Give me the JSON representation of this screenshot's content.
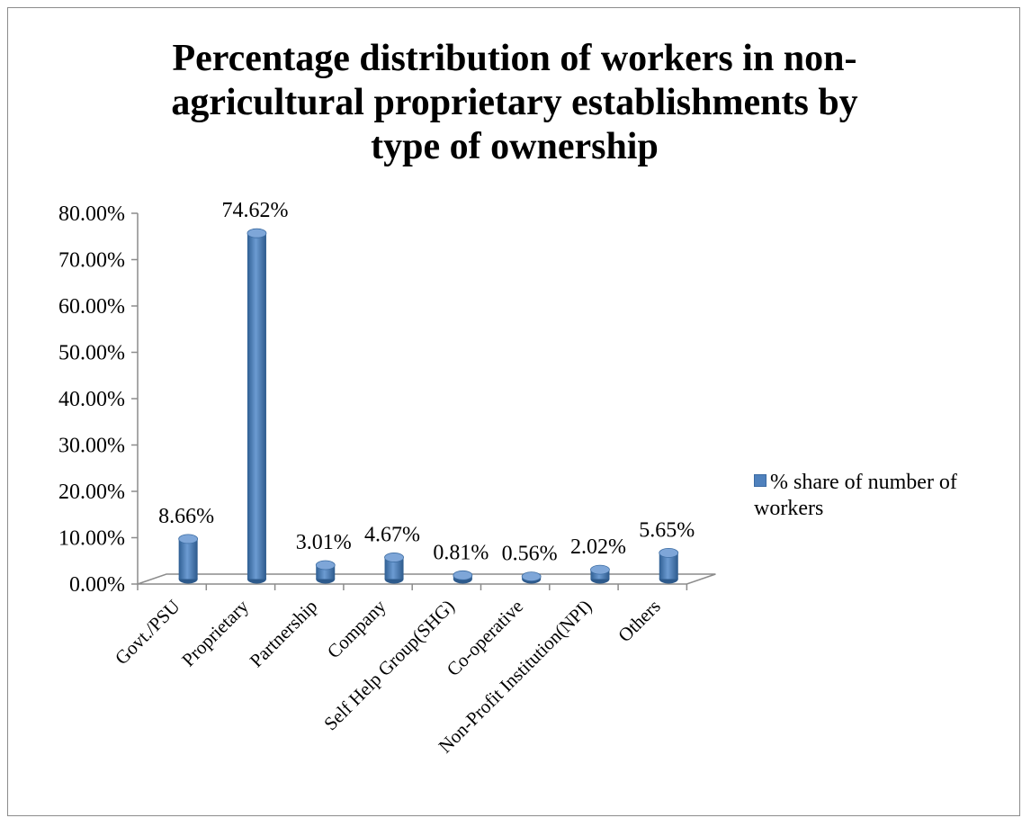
{
  "chart_data": {
    "type": "bar",
    "title_lines": [
      "Percentage distribution of workers in non-",
      "agricultural proprietary establishments by",
      "type of ownership"
    ],
    "categories": [
      "Govt./PSU",
      "Proprietary",
      "Partnership",
      "Company",
      "Self Help Group(SHG)",
      "Co-operative",
      "Non-Profit Institution(NPI)",
      "Others"
    ],
    "series": [
      {
        "name": "% share of number of workers",
        "values": [
          8.66,
          74.62,
          3.01,
          4.67,
          0.81,
          0.56,
          2.02,
          5.65
        ],
        "value_labels": [
          "8.66%",
          "74.62%",
          "3.01%",
          "4.67%",
          "0.81%",
          "0.56%",
          "2.02%",
          "5.65%"
        ],
        "color": "#4f81bd"
      }
    ],
    "y_ticks": [
      "0.00%",
      "10.00%",
      "20.00%",
      "30.00%",
      "40.00%",
      "50.00%",
      "60.00%",
      "70.00%",
      "80.00%"
    ],
    "ylim": [
      0,
      80
    ],
    "legend_position": "right",
    "style": "3d-cylinder"
  }
}
